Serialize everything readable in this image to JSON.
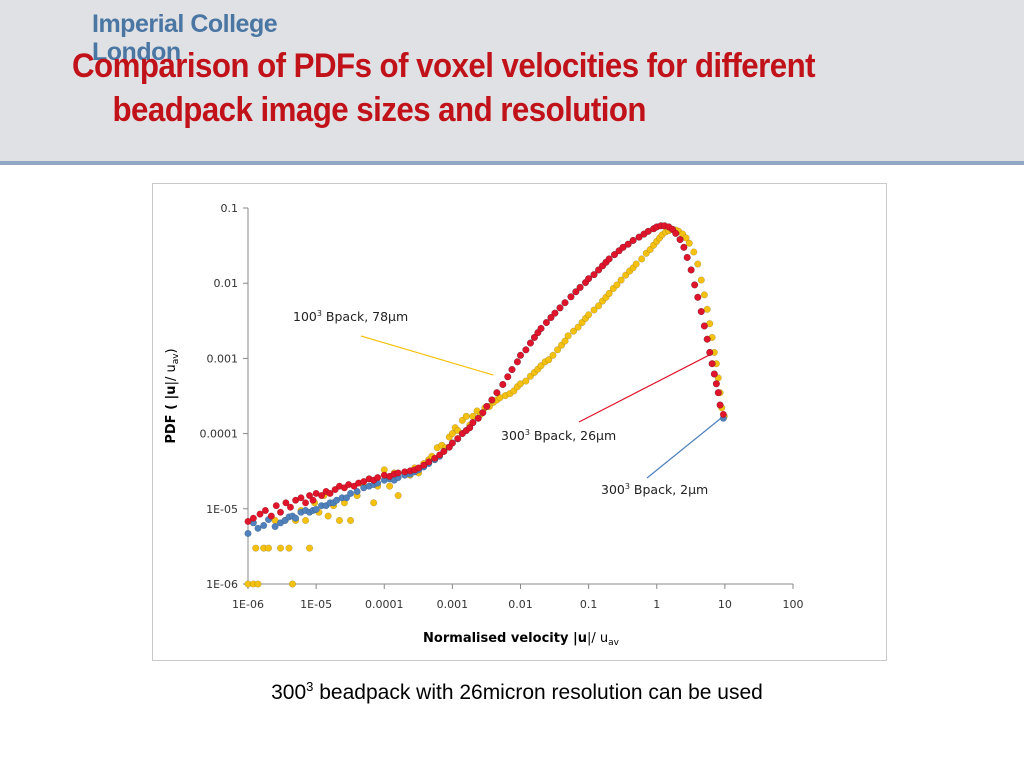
{
  "header": {
    "logo_line1": "Imperial College",
    "logo_line2": "London",
    "title_line1": "Comparison of PDFs of voxel velocities for different",
    "title_line2": "beadpack image sizes and resolution"
  },
  "caption": {
    "prefix": "300",
    "sup": "3",
    "rest": " beadpack with 26micron resolution can be used"
  },
  "colors": {
    "title": "#c1121a",
    "logo": "#4a76a3",
    "header_bg": "#e0e1e5",
    "header_rule": "#8fa7c2",
    "series_100_78um": "#f5c110",
    "series_300_26um": "#e0142a",
    "series_300_2um": "#4f81bd"
  },
  "chart_data": {
    "type": "scatter",
    "x_scale": "log",
    "y_scale": "log",
    "xlim": [
      1e-06,
      100
    ],
    "ylim": [
      1e-06,
      0.1
    ],
    "x_ticks": [
      "1E-06",
      "1E-05",
      "0.0001",
      "0.001",
      "0.01",
      "0.1",
      "1",
      "10",
      "100"
    ],
    "y_ticks": [
      "1E-06",
      "1E-05",
      "0.0001",
      "0.001",
      "0.01",
      "0.1"
    ],
    "grid": false,
    "legend": "none",
    "xlabel": {
      "main": "Normalised velocity |",
      "bold": "u",
      "mid": "|/ u",
      "sub": "av"
    },
    "ylabel": {
      "main": "PDF ( |",
      "bold": "u",
      "mid": "|/ u",
      "sub": "av",
      "end": ")"
    },
    "annotations": [
      {
        "base": "100",
        "sup": "3",
        "rest": " Bpack, 78μm",
        "target_series": "100^3 Bpack, 78um",
        "target": [
          0.004,
          0.0006
        ]
      },
      {
        "base": "300",
        "sup": "3",
        "rest": " Bpack, 26μm",
        "target_series": "300^3 Bpack, 26um",
        "target": [
          7.0,
          0.0012
        ]
      },
      {
        "base": "300",
        "sup": "3",
        "rest": " Bpack, 2μm",
        "target_series": "300^3 Bpack, 2um",
        "target": [
          9.5,
          0.00017
        ]
      }
    ],
    "series": [
      {
        "name": "100^3 Bpack, 78um",
        "color": "#f5c110",
        "x": [
          1e-06,
          1.2e-06,
          1.4e-06,
          1.3e-06,
          1.7e-06,
          2e-06,
          2.5e-06,
          3e-06,
          3.5e-06,
          4e-06,
          4.5e-06,
          5e-06,
          6e-06,
          7e-06,
          8e-06,
          9.5e-06,
          1.1e-05,
          1.3e-05,
          1.5e-05,
          1.8e-05,
          2.2e-05,
          2.6e-05,
          3.2e-05,
          4e-05,
          5e-05,
          6e-05,
          7e-05,
          8e-05,
          0.0001,
          0.00012,
          0.00014,
          0.00016,
          0.0002,
          0.00024,
          0.00028,
          0.00032,
          0.00038,
          0.00045,
          0.0005,
          0.00055,
          0.0006,
          0.0007,
          0.0008,
          0.0009,
          0.001,
          0.0011,
          0.0012,
          0.0014,
          0.0016,
          0.0018,
          0.002,
          0.0023,
          0.0026,
          0.003,
          0.0035,
          0.004,
          0.0045,
          0.005,
          0.006,
          0.007,
          0.008,
          0.009,
          0.01,
          0.012,
          0.014,
          0.016,
          0.018,
          0.02,
          0.023,
          0.026,
          0.03,
          0.035,
          0.04,
          0.045,
          0.05,
          0.06,
          0.07,
          0.08,
          0.09,
          0.1,
          0.12,
          0.14,
          0.16,
          0.18,
          0.2,
          0.23,
          0.26,
          0.3,
          0.35,
          0.4,
          0.45,
          0.5,
          0.6,
          0.7,
          0.8,
          0.9,
          1.0,
          1.1,
          1.2,
          1.35,
          1.5,
          1.7,
          1.9,
          2.1,
          2.4,
          2.7,
          3.0,
          3.5,
          4.0,
          4.5,
          5.0,
          5.5,
          6.0,
          6.5,
          7.0,
          7.5,
          8.0,
          8.5,
          9.0,
          9.8
        ],
        "y": [
          1e-06,
          1e-06,
          1e-06,
          3e-06,
          3e-06,
          3e-06,
          7e-06,
          3e-06,
          7e-06,
          3e-06,
          1e-06,
          7e-06,
          9.5e-06,
          7e-06,
          3e-06,
          1.2e-05,
          9e-06,
          1.5e-05,
          8e-06,
          1.1e-05,
          7e-06,
          1.2e-05,
          7e-06,
          1.5e-05,
          2e-05,
          2.5e-05,
          1.2e-05,
          2e-05,
          3.3e-05,
          2e-05,
          3e-05,
          1.5e-05,
          3e-05,
          2.8e-05,
          3.5e-05,
          3e-05,
          4e-05,
          4.5e-05,
          5e-05,
          4.5e-05,
          6.5e-05,
          7e-05,
          6.5e-05,
          9e-05,
          0.0001,
          0.00012,
          0.00011,
          0.00015,
          0.00017,
          0.00013,
          0.00017,
          0.0002,
          0.00018,
          0.00022,
          0.00023,
          0.00026,
          0.00028,
          0.0003,
          0.00032,
          0.00034,
          0.00037,
          0.00042,
          0.00046,
          0.0005,
          0.00058,
          0.00065,
          0.00072,
          0.0008,
          0.0009,
          0.00096,
          0.0011,
          0.0013,
          0.0015,
          0.0017,
          0.002,
          0.0023,
          0.0026,
          0.003,
          0.0034,
          0.0038,
          0.0044,
          0.005,
          0.0058,
          0.0065,
          0.0073,
          0.0085,
          0.0095,
          0.011,
          0.0128,
          0.0145,
          0.016,
          0.018,
          0.021,
          0.025,
          0.028,
          0.032,
          0.036,
          0.04,
          0.044,
          0.048,
          0.05,
          0.052,
          0.051,
          0.049,
          0.045,
          0.04,
          0.034,
          0.026,
          0.018,
          0.011,
          0.007,
          0.0045,
          0.0029,
          0.0019,
          0.0012,
          0.00085,
          0.00055,
          0.00035,
          0.00022,
          0.00017
        ]
      },
      {
        "name": "300^3 Bpack, 2um",
        "color": "#4f81bd",
        "x": [
          1e-06,
          1.2e-06,
          1.4e-06,
          1.7e-06,
          2e-06,
          2.5e-06,
          3e-06,
          3.5e-06,
          4e-06,
          4.5e-06,
          5e-06,
          6e-06,
          7e-06,
          8e-06,
          9e-06,
          1e-05,
          1.2e-05,
          1.4e-05,
          1.6e-05,
          1.8e-05,
          2e-05,
          2.4e-05,
          2.8e-05,
          3.2e-05,
          4e-05,
          5e-05,
          6e-05,
          7e-05,
          8e-05,
          0.0001,
          0.00012,
          0.00014,
          0.00016,
          0.0002,
          0.00024,
          0.00028,
          0.00032,
          0.00038,
          0.00045,
          0.00055,
          0.00065,
          0.00075,
          0.0009,
          0.001,
          0.0012,
          0.0014,
          0.0016,
          0.0018,
          0.002,
          0.0024,
          0.0028,
          0.0032,
          0.0038,
          0.0045,
          0.0055,
          0.0065,
          0.0075,
          0.009,
          0.01,
          0.012,
          0.014,
          0.016,
          0.018,
          0.02,
          0.024,
          0.028,
          0.032,
          0.038,
          0.045,
          0.055,
          0.065,
          0.075,
          0.09,
          0.1,
          0.12,
          0.14,
          0.16,
          0.18,
          0.2,
          0.24,
          0.28,
          0.32,
          0.38,
          0.45,
          0.55,
          0.65,
          0.75,
          0.9,
          1.0,
          1.15,
          1.3,
          1.5,
          1.7,
          1.9,
          2.2,
          2.5,
          2.8,
          3.2,
          3.6,
          4.0,
          4.5,
          5.0,
          5.5,
          6.0,
          6.5,
          7.0,
          7.5,
          8.0,
          8.5,
          9.5
        ],
        "y": [
          4.7e-06,
          6.5e-06,
          5.5e-06,
          6e-06,
          7.2e-06,
          5.8e-06,
          6.5e-06,
          7e-06,
          7.8e-06,
          8e-06,
          7.5e-06,
          9e-06,
          9.5e-06,
          9e-06,
          9.5e-06,
          9.8e-06,
          1.1e-05,
          1.1e-05,
          1.2e-05,
          1.2e-05,
          1.3e-05,
          1.4e-05,
          1.4e-05,
          1.6e-05,
          1.7e-05,
          1.9e-05,
          2e-05,
          2.1e-05,
          2.2e-05,
          2.4e-05,
          2.5e-05,
          2.4e-05,
          2.6e-05,
          2.8e-05,
          2.9e-05,
          3.1e-05,
          3.3e-05,
          3.6e-05,
          4e-05,
          4.5e-05,
          5e-05,
          5.8e-05,
          6.6e-05,
          7.5e-05,
          8.5e-05,
          0.0001,
          0.00011,
          0.00012,
          0.00014,
          0.00016,
          0.00019,
          0.00023,
          0.00028,
          0.00035,
          0.00045,
          0.00057,
          0.00071,
          0.0009,
          0.0011,
          0.0013,
          0.0016,
          0.0019,
          0.0022,
          0.0025,
          0.003,
          0.0035,
          0.004,
          0.0047,
          0.0055,
          0.0066,
          0.0077,
          0.0088,
          0.0102,
          0.0115,
          0.013,
          0.015,
          0.017,
          0.019,
          0.021,
          0.024,
          0.027,
          0.03,
          0.033,
          0.037,
          0.041,
          0.045,
          0.049,
          0.053,
          0.056,
          0.058,
          0.058,
          0.056,
          0.052,
          0.046,
          0.038,
          0.03,
          0.022,
          0.015,
          0.0095,
          0.0065,
          0.0042,
          0.0027,
          0.0018,
          0.0012,
          0.00085,
          0.00062,
          0.00046,
          0.00035,
          0.00024,
          0.00016
        ]
      },
      {
        "name": "300^3 Bpack, 26um",
        "color": "#e0142a",
        "x": [
          1e-06,
          1.2e-06,
          1.5e-06,
          1.8e-06,
          2.2e-06,
          2.6e-06,
          3e-06,
          3.6e-06,
          4.2e-06,
          5e-06,
          6e-06,
          7e-06,
          8e-06,
          9e-06,
          1e-05,
          1.2e-05,
          1.4e-05,
          1.6e-05,
          1.9e-05,
          2.2e-05,
          2.6e-05,
          3e-05,
          3.6e-05,
          4.2e-05,
          5e-05,
          6e-05,
          7e-05,
          8e-05,
          0.0001,
          0.00012,
          0.00014,
          0.00016,
          0.0002,
          0.00024,
          0.00028,
          0.00032,
          0.00038,
          0.00045,
          0.00055,
          0.00065,
          0.00075,
          0.0009,
          0.001,
          0.0012,
          0.0014,
          0.0016,
          0.0018,
          0.002,
          0.0024,
          0.0028,
          0.0032,
          0.0038,
          0.0045,
          0.0055,
          0.0065,
          0.0075,
          0.009,
          0.01,
          0.012,
          0.014,
          0.016,
          0.018,
          0.02,
          0.024,
          0.028,
          0.032,
          0.038,
          0.045,
          0.055,
          0.065,
          0.075,
          0.09,
          0.1,
          0.12,
          0.14,
          0.16,
          0.18,
          0.2,
          0.24,
          0.28,
          0.32,
          0.38,
          0.45,
          0.55,
          0.65,
          0.75,
          0.9,
          1.0,
          1.15,
          1.3,
          1.5,
          1.7,
          1.9,
          2.2,
          2.5,
          2.8,
          3.2,
          3.6,
          4.0,
          4.5,
          5.0,
          5.5,
          6.0,
          6.5,
          7.0,
          7.5,
          8.0,
          8.5,
          9.5
        ],
        "y": [
          6.8e-06,
          7.5e-06,
          8.5e-06,
          9.5e-06,
          8e-06,
          1.1e-05,
          9e-06,
          1.2e-05,
          1.05e-05,
          1.3e-05,
          1.4e-05,
          1.2e-05,
          1.5e-05,
          1.3e-05,
          1.6e-05,
          1.5e-05,
          1.7e-05,
          1.6e-05,
          1.8e-05,
          2e-05,
          1.9e-05,
          2.1e-05,
          2e-05,
          2.2e-05,
          2.3e-05,
          2.5e-05,
          2.4e-05,
          2.6e-05,
          2.8e-05,
          2.7e-05,
          2.9e-05,
          3e-05,
          3.1e-05,
          3.2e-05,
          3.3e-05,
          3.5e-05,
          3.8e-05,
          4.2e-05,
          4.7e-05,
          5.2e-05,
          5.8e-05,
          6.6e-05,
          7.5e-05,
          8.6e-05,
          0.0001,
          0.00011,
          0.00012,
          0.00014,
          0.00016,
          0.00019,
          0.00023,
          0.00028,
          0.00035,
          0.00045,
          0.00057,
          0.00071,
          0.0009,
          0.0011,
          0.0013,
          0.0016,
          0.0019,
          0.0022,
          0.0025,
          0.003,
          0.0035,
          0.004,
          0.0047,
          0.0055,
          0.0066,
          0.0077,
          0.0088,
          0.0102,
          0.0115,
          0.013,
          0.015,
          0.017,
          0.019,
          0.021,
          0.024,
          0.027,
          0.03,
          0.033,
          0.037,
          0.041,
          0.045,
          0.049,
          0.053,
          0.056,
          0.058,
          0.058,
          0.056,
          0.052,
          0.046,
          0.038,
          0.03,
          0.022,
          0.015,
          0.0095,
          0.0065,
          0.0042,
          0.0027,
          0.0018,
          0.0012,
          0.00085,
          0.00062,
          0.00046,
          0.00035,
          0.00024,
          0.00018
        ]
      }
    ]
  }
}
